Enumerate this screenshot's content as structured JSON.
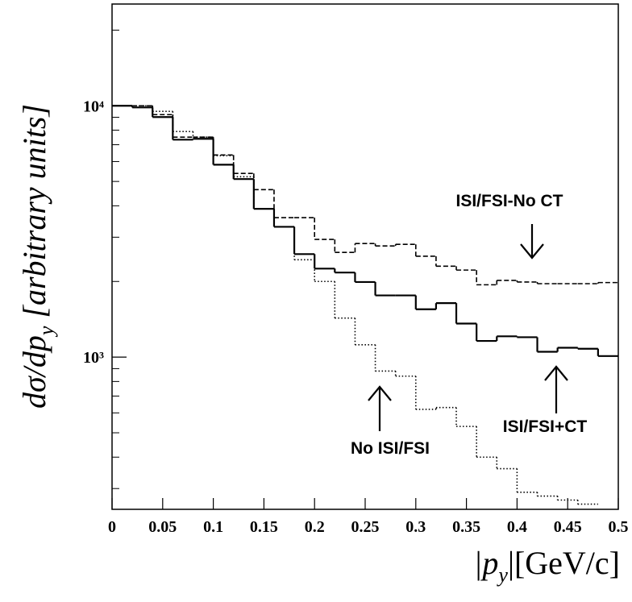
{
  "chart_data": {
    "type": "histogram",
    "bins": [
      0,
      0.02,
      0.04,
      0.06,
      0.08,
      0.1,
      0.12,
      0.14,
      0.16,
      0.18,
      0.2,
      0.22,
      0.24,
      0.26,
      0.28,
      0.3,
      0.32,
      0.34,
      0.36,
      0.38,
      0.4,
      0.42,
      0.44,
      0.46,
      0.48,
      0.5
    ],
    "series": [
      {
        "name": "ISI/FSI+CT",
        "color": "#000000",
        "style": "solid",
        "values": [
          10000,
          9850,
          9020,
          7330,
          7390,
          5830,
          5110,
          3890,
          3300,
          2570,
          2250,
          2170,
          1990,
          1760,
          1760,
          1550,
          1640,
          1360,
          1160,
          1210,
          1200,
          1050,
          1090,
          1080,
          1010
        ]
      },
      {
        "name": "ISI/FSI-No CT",
        "color": "#000000",
        "style": "dashed",
        "values": [
          10000,
          10000,
          9220,
          7500,
          7500,
          6370,
          5380,
          4640,
          3590,
          3590,
          2940,
          2610,
          2830,
          2770,
          2810,
          2520,
          2300,
          2220,
          1940,
          2020,
          1990,
          1960,
          1960,
          1960,
          1980
        ]
      },
      {
        "name": "No ISI/FSI",
        "color": "#000000",
        "style": "dotted",
        "values": [
          10000,
          10000,
          9500,
          7900,
          7500,
          6330,
          5220,
          3890,
          3300,
          2440,
          2000,
          1430,
          1120,
          880,
          840,
          620,
          630,
          530,
          400,
          360,
          290,
          280,
          270,
          260,
          null
        ]
      }
    ],
    "xlim": [
      0,
      0.5
    ],
    "xticks": [
      0,
      0.05,
      0.1,
      0.15,
      0.2,
      0.25,
      0.3,
      0.35,
      0.4,
      0.45,
      0.5
    ],
    "ylim": [
      248,
      25400
    ],
    "log_y": true,
    "yticks": [
      {
        "value": 1000,
        "label": "10³"
      },
      {
        "value": 10000,
        "label": "10⁴"
      }
    ],
    "yticks_minor": [
      300,
      400,
      500,
      600,
      700,
      800,
      900,
      2000,
      3000,
      4000,
      5000,
      6000,
      7000,
      8000,
      9000,
      20000
    ],
    "ylabel": {
      "main": "dσ/dp",
      "sub": "y",
      "rest": " [arbitrary units]"
    },
    "xlabel": {
      "open": "|p",
      "sub": "y",
      "rest": "|[GeV/c]"
    }
  }
}
